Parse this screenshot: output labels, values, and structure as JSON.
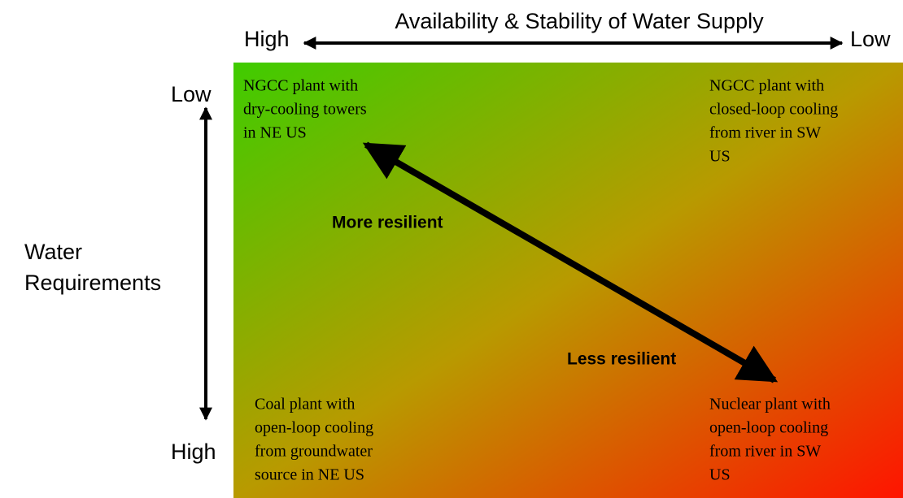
{
  "title": "Availability & Stability of Water Supply",
  "x_axis": {
    "left": "High",
    "right": "Low"
  },
  "y_axis": {
    "label": [
      "Water",
      "Requirements"
    ],
    "top": "Low",
    "bottom": "High"
  },
  "quadrants": {
    "top_left": [
      "NGCC plant with",
      "dry-cooling towers",
      "in NE US"
    ],
    "top_right": [
      "NGCC plant with",
      "closed-loop cooling",
      "from river in SW",
      "US"
    ],
    "bottom_left": [
      "Coal plant with",
      "open-loop cooling",
      "from groundwater",
      "source in NE US"
    ],
    "bottom_right": [
      "Nuclear plant with",
      "open-loop cooling",
      "from river in SW",
      "US"
    ]
  },
  "arrow_labels": {
    "more": "More resilient",
    "less": "Less resilient"
  }
}
